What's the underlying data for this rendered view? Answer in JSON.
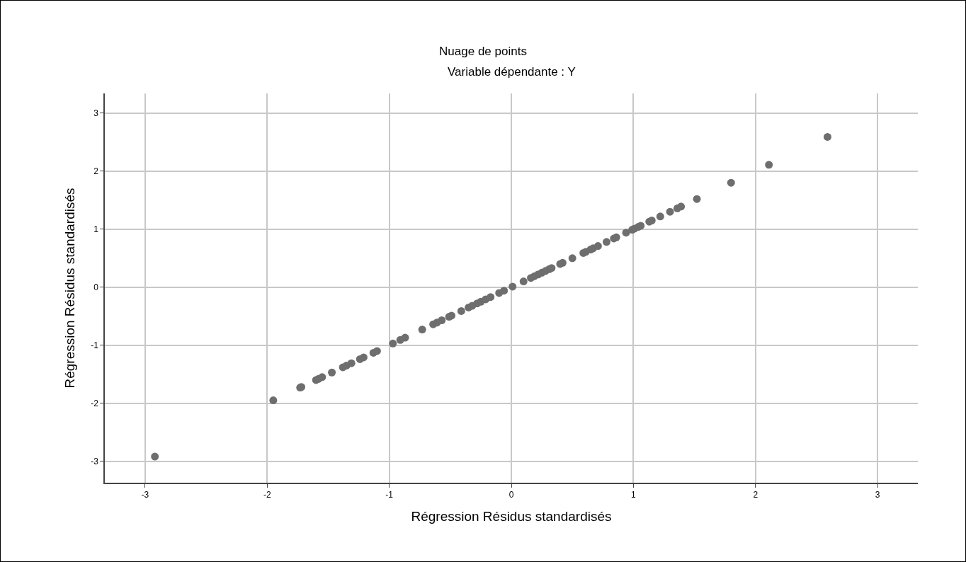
{
  "chart_data": {
    "type": "scatter",
    "title": "Nuage de points",
    "subtitle": "Variable dépendante : Y",
    "xlabel": "Régression Résidus standardisés",
    "ylabel": "Régression Résidus standardisés",
    "x": [
      -2.92,
      -1.95,
      -1.73,
      -1.72,
      -1.6,
      -1.58,
      -1.55,
      -1.47,
      -1.38,
      -1.35,
      -1.31,
      -1.24,
      -1.21,
      -1.13,
      -1.1,
      -0.97,
      -0.91,
      -0.87,
      -0.73,
      -0.64,
      -0.61,
      -0.57,
      -0.51,
      -0.49,
      -0.41,
      -0.35,
      -0.32,
      -0.28,
      -0.25,
      -0.21,
      -0.17,
      -0.1,
      -0.06,
      0.01,
      0.1,
      0.16,
      0.19,
      0.22,
      0.25,
      0.28,
      0.31,
      0.33,
      0.4,
      0.42,
      0.5,
      0.59,
      0.61,
      0.65,
      0.67,
      0.71,
      0.78,
      0.84,
      0.86,
      0.94,
      0.99,
      1.01,
      1.04,
      1.06,
      1.13,
      1.15,
      1.22,
      1.3,
      1.36,
      1.39,
      1.52,
      1.8,
      2.11,
      2.59
    ],
    "series": [
      {
        "color": "#6e6e6e",
        "values": [
          -2.92,
          -1.95,
          -1.73,
          -1.72,
          -1.6,
          -1.58,
          -1.55,
          -1.47,
          -1.38,
          -1.35,
          -1.31,
          -1.24,
          -1.21,
          -1.13,
          -1.1,
          -0.97,
          -0.91,
          -0.87,
          -0.73,
          -0.64,
          -0.61,
          -0.57,
          -0.51,
          -0.49,
          -0.41,
          -0.35,
          -0.32,
          -0.28,
          -0.25,
          -0.21,
          -0.17,
          -0.1,
          -0.06,
          0.01,
          0.1,
          0.16,
          0.19,
          0.22,
          0.25,
          0.28,
          0.31,
          0.33,
          0.4,
          0.42,
          0.5,
          0.59,
          0.61,
          0.65,
          0.67,
          0.71,
          0.78,
          0.84,
          0.86,
          0.94,
          0.99,
          1.01,
          1.04,
          1.06,
          1.13,
          1.15,
          1.22,
          1.3,
          1.36,
          1.39,
          1.52,
          1.8,
          2.11,
          2.59
        ]
      }
    ],
    "xlim": [
      -3.33,
      3.33
    ],
    "ylim": [
      -3.37,
      3.34
    ],
    "xticks": [
      -3,
      -2,
      -1,
      0,
      1,
      2,
      3
    ],
    "yticks": [
      -3,
      -2,
      -1,
      0,
      1,
      2,
      3
    ],
    "grid": true,
    "legend": false,
    "marker": "circle"
  }
}
